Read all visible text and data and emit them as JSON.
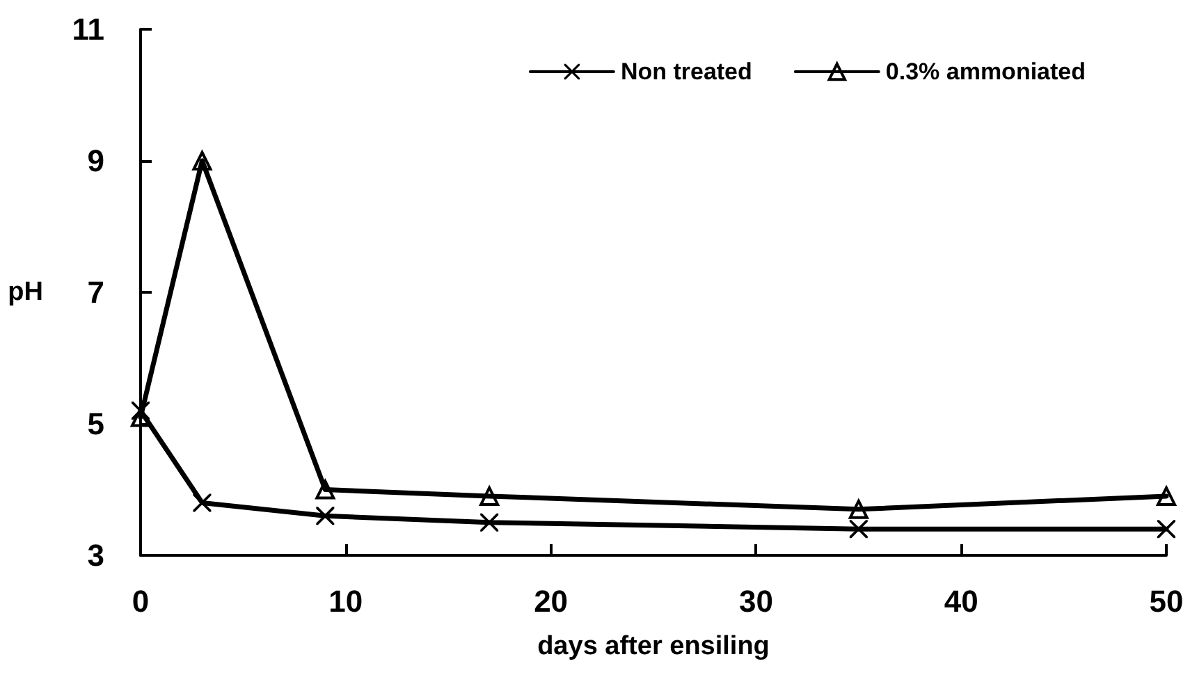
{
  "chart_data": {
    "type": "line",
    "xlabel": "days after ensiling",
    "ylabel": "pH",
    "x": [
      0,
      3,
      9,
      17,
      35,
      50
    ],
    "series": [
      {
        "name": "Non treated",
        "color": "#000000",
        "marker": "cross",
        "values": [
          5.2,
          3.8,
          3.6,
          3.5,
          3.4,
          3.4
        ]
      },
      {
        "name": "0.3% ammoniated",
        "color": "#000000",
        "marker": "triangle",
        "values": [
          5.1,
          9.0,
          4.0,
          3.9,
          3.7,
          3.9
        ]
      }
    ],
    "xlim": [
      0,
      50
    ],
    "xticks": [
      0,
      10,
      20,
      30,
      40,
      50
    ],
    "ylim": [
      3,
      11
    ],
    "yticks": [
      3,
      5,
      7,
      9,
      11
    ],
    "grid": false,
    "legend": "top right",
    "line_style": "solid"
  }
}
